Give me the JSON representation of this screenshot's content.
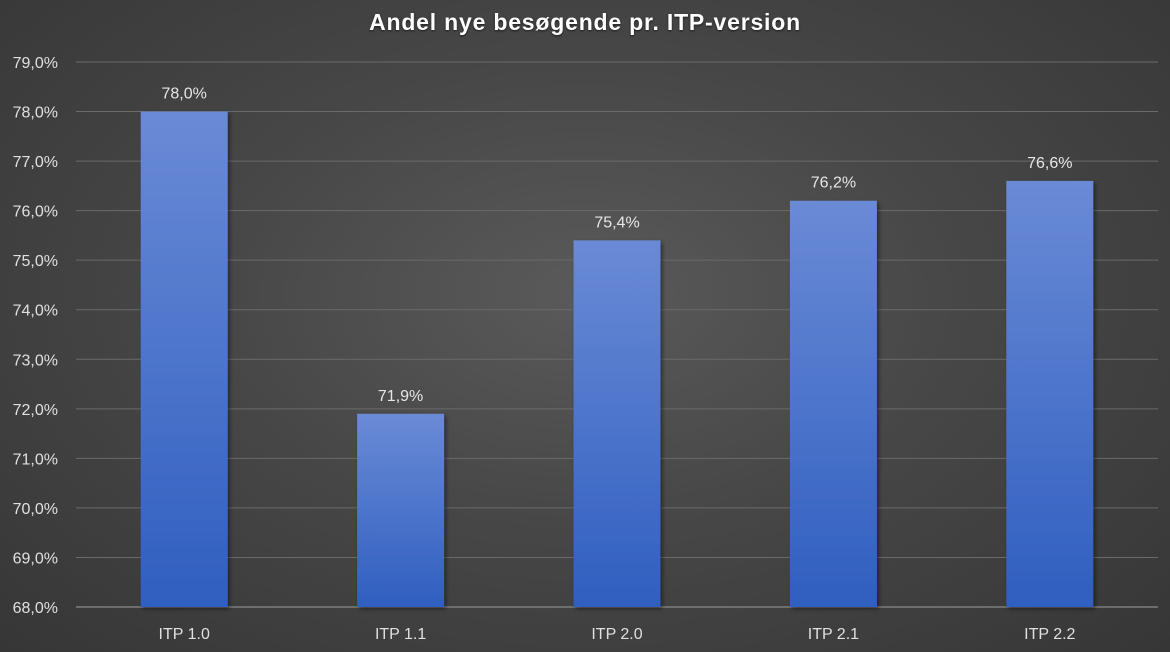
{
  "chart_data": {
    "type": "bar",
    "title": "Andel nye besøgende pr. ITP-version",
    "categories": [
      "ITP 1.0",
      "ITP 1.1",
      "ITP 2.0",
      "ITP 2.1",
      "ITP 2.2"
    ],
    "values": [
      78.0,
      71.9,
      75.4,
      76.2,
      76.6
    ],
    "data_labels": [
      "78,0%",
      "71,9%",
      "75,4%",
      "76,2%",
      "76,6%"
    ],
    "ylim": [
      68,
      79
    ],
    "yticks": [
      68,
      69,
      70,
      71,
      72,
      73,
      74,
      75,
      76,
      77,
      78,
      79
    ],
    "ytick_labels": [
      "68,0%",
      "69,0%",
      "70,0%",
      "71,0%",
      "72,0%",
      "73,0%",
      "74,0%",
      "75,0%",
      "76,0%",
      "77,0%",
      "78,0%",
      "79,0%"
    ],
    "grid": true,
    "legend": "none",
    "colors": {
      "bar_top": "#6a8ad6",
      "bar_bottom": "#2f5fc0",
      "gridline": "#6a6a6a",
      "axis": "#8a8a8a",
      "text": "#e0e0e0"
    }
  }
}
